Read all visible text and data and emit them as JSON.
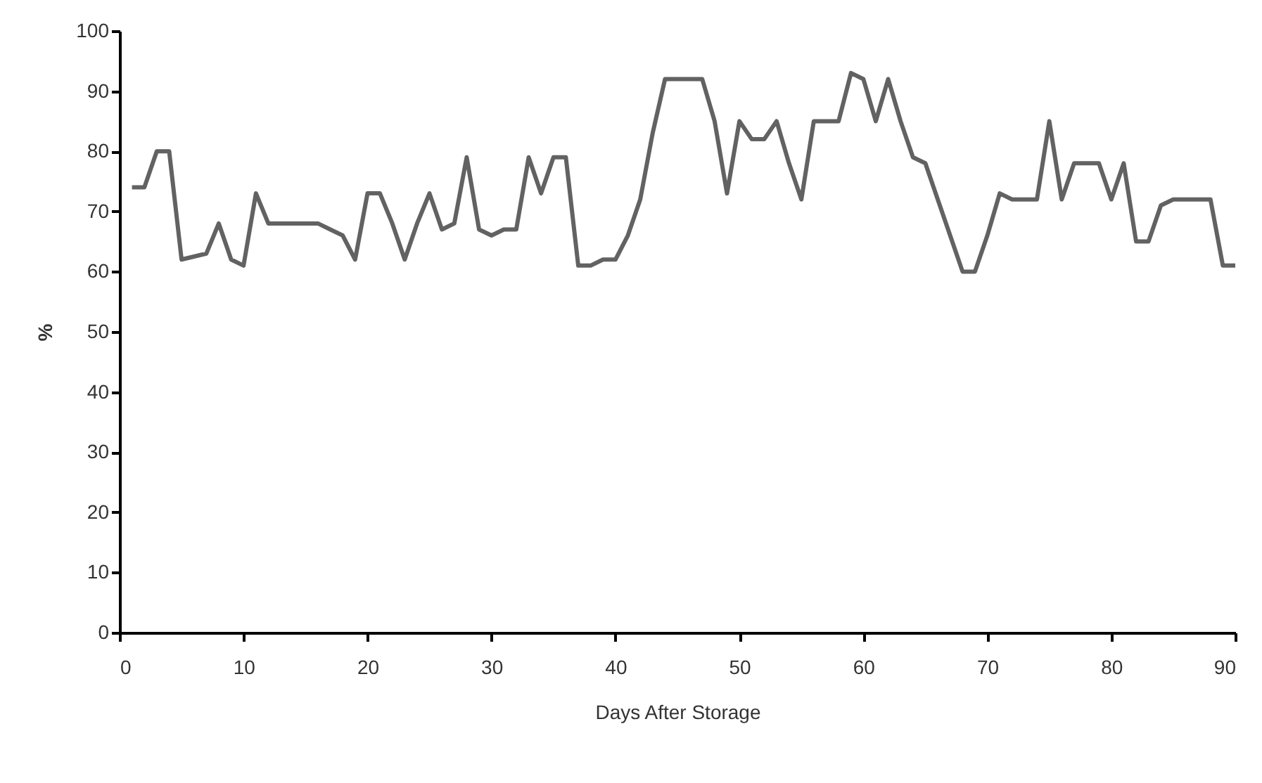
{
  "chart_data": {
    "type": "line",
    "xlabel": "Days After Storage",
    "ylabel": "%",
    "x": [
      1,
      2,
      3,
      4,
      5,
      6,
      7,
      8,
      9,
      10,
      11,
      12,
      13,
      14,
      15,
      16,
      17,
      18,
      19,
      20,
      21,
      22,
      23,
      24,
      25,
      26,
      27,
      28,
      29,
      30,
      31,
      32,
      33,
      34,
      35,
      36,
      37,
      38,
      39,
      40,
      41,
      42,
      43,
      44,
      45,
      46,
      47,
      48,
      49,
      50,
      51,
      52,
      53,
      54,
      55,
      56,
      57,
      58,
      59,
      60,
      61,
      62,
      63,
      64,
      65,
      66,
      67,
      68,
      69,
      70,
      71,
      72,
      73,
      74,
      75,
      76,
      77,
      78,
      79,
      80,
      81,
      82,
      83,
      84,
      85,
      86,
      87,
      88,
      89,
      90
    ],
    "series": [
      {
        "color": "#626262",
        "values": [
          74,
          74,
          80,
          80,
          62,
          62.5,
          63,
          68,
          62,
          61,
          73,
          68,
          68,
          68,
          68,
          68,
          67,
          66,
          62,
          73,
          73,
          68,
          62,
          68,
          73,
          67,
          68,
          79,
          67,
          66,
          67,
          67,
          79,
          73,
          79,
          79,
          61,
          61,
          62,
          62,
          66,
          72,
          83,
          92,
          92,
          92,
          92,
          85,
          73,
          85,
          82,
          82,
          85,
          78,
          72,
          85,
          85,
          85,
          93,
          92,
          85,
          92,
          85,
          79,
          78,
          72,
          66,
          60,
          60,
          66,
          73,
          72,
          72,
          72,
          85,
          72,
          78,
          78,
          78,
          72,
          78,
          65,
          65,
          71,
          72,
          72,
          72,
          72,
          61,
          61
        ]
      }
    ],
    "xlim": [
      0,
      90
    ],
    "xticks": [
      0,
      10,
      20,
      30,
      40,
      50,
      60,
      70,
      80,
      90
    ],
    "ylim": [
      0,
      100
    ],
    "yticks": [
      0,
      10,
      20,
      30,
      40,
      50,
      60,
      70,
      80,
      90,
      100
    ],
    "grid": false,
    "marker": "none",
    "line_style": "solid"
  }
}
